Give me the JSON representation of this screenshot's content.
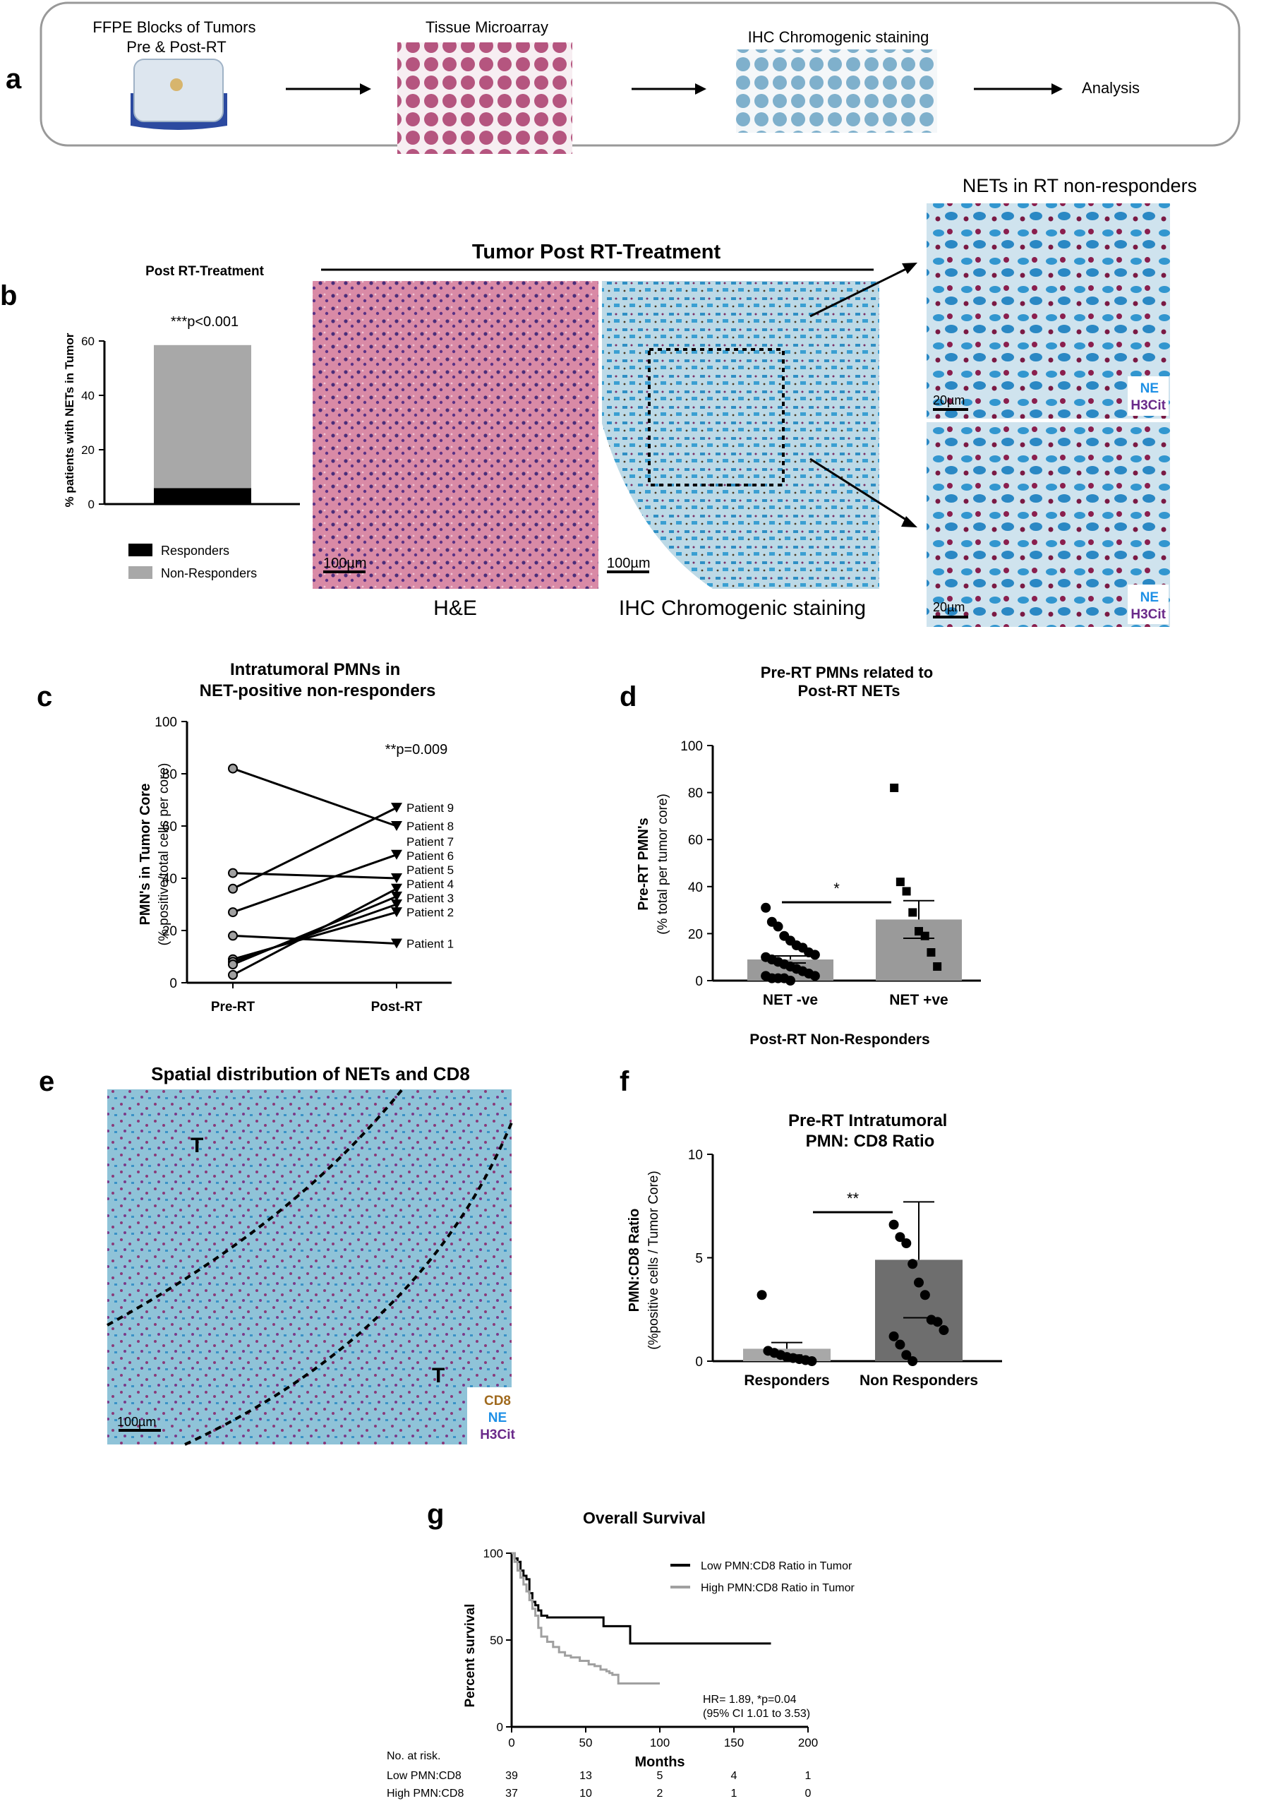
{
  "panel_letters": {
    "a": "a",
    "b": "b",
    "c": "c",
    "d": "d",
    "e": "e",
    "f": "f",
    "g": "g"
  },
  "panel_a": {
    "steps": [
      "FFPE Blocks of Tumors\nPre & Post-RT",
      "Tissue Microarray",
      "IHC Chromogenic staining",
      "Analysis"
    ]
  },
  "panel_b": {
    "chart_title": "Post RT-Treatment",
    "pvalue": "***p<0.001",
    "ylabel": "% patients with NETs in Tumor",
    "legend": [
      "Responders",
      "Non-Responders"
    ],
    "section_title": "Tumor Post RT-Treatment",
    "he_caption": "H&E",
    "ihc_caption": "IHC Chromogenic staining",
    "scale_100": "100µm",
    "zoom_title": "NETs in RT non-responders",
    "scale_20": "20µm",
    "stain_ne": "NE",
    "stain_h3": "H3Cit"
  },
  "panel_c": {
    "title": "Intratumoral PMNs in\nNET-positive non-responders",
    "ylabel": "PMN's in Tumor Core",
    "ylabel2": "(% positive/total cells per core)",
    "pvalue": "**p=0.009"
  },
  "panel_d": {
    "title": "Pre-RT PMNs related to\nPost-RT NETs",
    "ylabel": "Pre-RT PMN's",
    "ylabel2": "(% total per tumor core)",
    "xlabel": "Post-RT Non-Responders",
    "sig": "*"
  },
  "panel_e": {
    "title": "Spatial distribution of NETs and CD8",
    "region_label": "T",
    "scale": "100µm",
    "legend": [
      "CD8",
      "NE",
      "H3Cit"
    ]
  },
  "panel_f": {
    "title": "Pre-RT  Intratumoral\nPMN: CD8 Ratio",
    "ylabel": "PMN:CD8 Ratio",
    "ylabel2": "(%positive cells / Tumor Core)",
    "sig": "**"
  },
  "panel_g": {
    "title": "Overall Survival",
    "ylabel": "Percent survival",
    "xlabel": "Months",
    "legend": [
      "Low PMN:CD8 Ratio in Tumor",
      "High PMN:CD8 Ratio in Tumor"
    ],
    "stats": "HR= 1.89, *p=0.04\n(95% CI 1.01 to 3.53)",
    "risk_header": "No. at risk.",
    "risk_rows": [
      {
        "label": "Low PMN:CD8",
        "values": [
          39,
          13,
          5,
          4,
          1
        ]
      },
      {
        "label": "High PMN:CD8",
        "values": [
          37,
          10,
          2,
          1,
          0
        ]
      }
    ]
  },
  "colors": {
    "black": "#000000",
    "grey": "#9a9a9a",
    "dark_bar": "#6e6e6e",
    "light_bar": "#a8a8a8",
    "ne_blue": "#1e90e6",
    "h3cit_purple": "#6a2a8a",
    "cd8_brown": "#a06a1e"
  },
  "chart_data": [
    {
      "id": "b",
      "type": "bar",
      "title": "Post RT-Treatment",
      "ylabel": "% patients with NETs in Tumor",
      "categories": [
        ""
      ],
      "series": [
        {
          "name": "Responders",
          "values": [
            5.9
          ]
        },
        {
          "name": "Non-Responders",
          "values": [
            52.6
          ]
        }
      ],
      "stacked": true,
      "ylim": [
        0,
        60
      ],
      "yticks": [
        0,
        20,
        40,
        60
      ]
    },
    {
      "id": "c",
      "type": "line",
      "title": "Intratumoral PMNs in\nNET-positive non-responders",
      "ylabel": "PMN's in Tumor Core (% positive/total cells per core)",
      "categories": [
        "Pre-RT",
        "Post-RT"
      ],
      "ylim": [
        0,
        100
      ],
      "yticks": [
        0,
        20,
        40,
        60,
        80,
        100
      ],
      "series": [
        {
          "name": "Patient 1",
          "values": [
            18,
            15
          ]
        },
        {
          "name": "Patient 2",
          "values": [
            9,
            27
          ]
        },
        {
          "name": "Patient 3",
          "values": [
            8,
            30
          ]
        },
        {
          "name": "Patient 4",
          "values": [
            7,
            33
          ]
        },
        {
          "name": "Patient 5",
          "values": [
            3,
            36
          ]
        },
        {
          "name": "Patient 6",
          "values": [
            42,
            40
          ]
        },
        {
          "name": "Patient 7",
          "values": [
            27,
            49
          ]
        },
        {
          "name": "Patient 8",
          "values": [
            82,
            60
          ]
        },
        {
          "name": "Patient 9",
          "values": [
            36,
            67
          ]
        }
      ]
    },
    {
      "id": "d",
      "type": "bar",
      "title": "Pre-RT PMNs related to\nPost-RT NETs",
      "xlabel": "Post-RT Non-Responders",
      "ylabel": "Pre-RT PMN's (% total per tumor core)",
      "categories": [
        "NET -ve",
        "NET  +ve"
      ],
      "values": [
        9,
        26
      ],
      "error": [
        1.5,
        8
      ],
      "ylim": [
        0,
        100
      ],
      "yticks": [
        0,
        20,
        40,
        60,
        80,
        100
      ],
      "points": [
        [
          31,
          25,
          23,
          19,
          17,
          15,
          14,
          12,
          11,
          10,
          9,
          8,
          7,
          6,
          5,
          4,
          3,
          2,
          2,
          1,
          1,
          1,
          0
        ],
        [
          82,
          42,
          38,
          29,
          21,
          19,
          12,
          6
        ]
      ]
    },
    {
      "id": "f",
      "type": "bar",
      "title": "Pre-RT  Intratumoral\nPMN: CD8 Ratio",
      "ylabel": "PMN:CD8 Ratio (%positive cells / Tumor Core)",
      "categories": [
        "Responders",
        "Non Responders"
      ],
      "values": [
        0.6,
        4.9
      ],
      "error": [
        0.3,
        2.8
      ],
      "ylim": [
        0,
        10
      ],
      "yticks": [
        0,
        5,
        10
      ],
      "points": [
        [
          3.2,
          0.5,
          0.4,
          0.3,
          0.2,
          0.15,
          0.1,
          0.05,
          0.0
        ],
        [
          6.6,
          6.0,
          5.7,
          4.7,
          3.8,
          3.2,
          2.0,
          1.9,
          1.5,
          1.2,
          0.8,
          0.3,
          0.0
        ]
      ]
    },
    {
      "id": "g",
      "type": "line",
      "title": "Overall Survival",
      "xlabel": "Months",
      "ylabel": "Percent survival",
      "xlim": [
        0,
        200
      ],
      "xticks": [
        0,
        50,
        100,
        150,
        200
      ],
      "ylim": [
        0,
        100
      ],
      "yticks": [
        0,
        50,
        100
      ],
      "series": [
        {
          "name": "Low PMN:CD8 Ratio in Tumor",
          "x": [
            0,
            2,
            4,
            6,
            8,
            10,
            12,
            14,
            16,
            18,
            20,
            24,
            28,
            60,
            62,
            78,
            80,
            175
          ],
          "y": [
            100,
            97,
            95,
            90,
            87,
            85,
            77,
            72,
            70,
            67,
            64,
            63,
            63,
            63,
            58,
            58,
            48,
            48
          ]
        },
        {
          "name": "High PMN:CD8 Ratio in Tumor",
          "x": [
            0,
            2,
            4,
            6,
            8,
            10,
            12,
            14,
            16,
            18,
            20,
            24,
            28,
            32,
            36,
            40,
            46,
            52,
            56,
            60,
            64,
            66,
            68,
            70,
            72,
            100
          ],
          "y": [
            100,
            95,
            90,
            86,
            82,
            78,
            73,
            68,
            64,
            57,
            52,
            49,
            46,
            43,
            41,
            40,
            38,
            36,
            35,
            33,
            32,
            31,
            30,
            30,
            25,
            25
          ]
        }
      ]
    }
  ]
}
